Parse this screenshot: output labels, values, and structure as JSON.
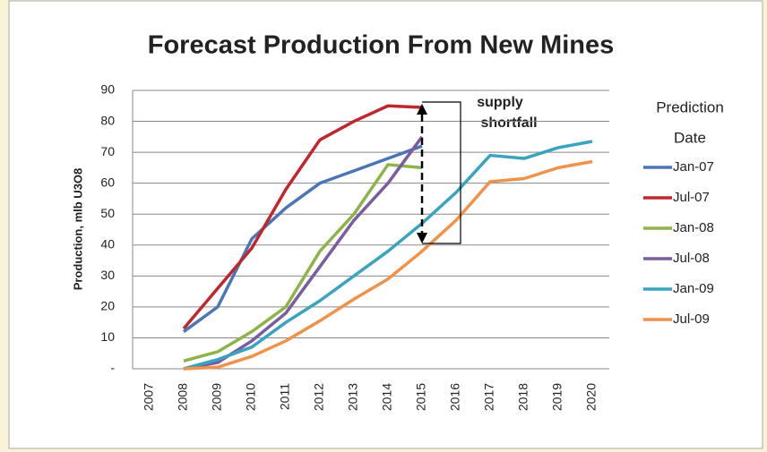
{
  "chart_data": {
    "type": "line",
    "title": "Forecast Production From New Mines",
    "y_label": "Production, mlb U3O8",
    "legend_title": [
      "Prediction",
      "Date"
    ],
    "annotation": [
      "supply",
      "shortfall"
    ],
    "categories": [
      "2007",
      "2008",
      "2009",
      "2010",
      "2011",
      "2012",
      "2013",
      "2014",
      "2015",
      "2016",
      "2017",
      "2018",
      "2019",
      "2020"
    ],
    "series": [
      {
        "name": "Jan-07",
        "color": "#4a76b8",
        "values": [
          null,
          12,
          20,
          42,
          52,
          60,
          64,
          68,
          72,
          null,
          null,
          null,
          null,
          null
        ]
      },
      {
        "name": "Jul-07",
        "color": "#c0272d",
        "values": [
          null,
          13,
          26,
          39,
          58,
          74,
          80,
          85,
          84.5,
          null,
          null,
          null,
          null,
          null
        ]
      },
      {
        "name": "Jan-08",
        "color": "#8cb44a",
        "values": [
          null,
          2.5,
          5.5,
          12,
          20,
          38,
          50,
          66,
          65,
          null,
          null,
          null,
          null,
          null
        ]
      },
      {
        "name": "Jul-08",
        "color": "#7a5ca0",
        "values": [
          null,
          0,
          2,
          9,
          18,
          33,
          48,
          60,
          75,
          null,
          null,
          null,
          null,
          null
        ]
      },
      {
        "name": "Jan-09",
        "color": "#3aa3c0",
        "values": [
          null,
          0,
          3,
          7,
          15,
          22,
          30,
          38,
          47,
          57,
          69,
          68,
          71.5,
          73.5
        ]
      },
      {
        "name": "Jul-09",
        "color": "#f0924a",
        "values": [
          null,
          0,
          0.5,
          4,
          9,
          15.5,
          22.5,
          29,
          38,
          48,
          60.5,
          61.5,
          65,
          67
        ]
      }
    ],
    "ylim": [
      0,
      90
    ],
    "yticks": [
      {
        "value": 0,
        "label": "-"
      },
      10,
      20,
      30,
      40,
      50,
      60,
      70,
      80,
      90
    ],
    "grid": true,
    "legend": "right"
  }
}
